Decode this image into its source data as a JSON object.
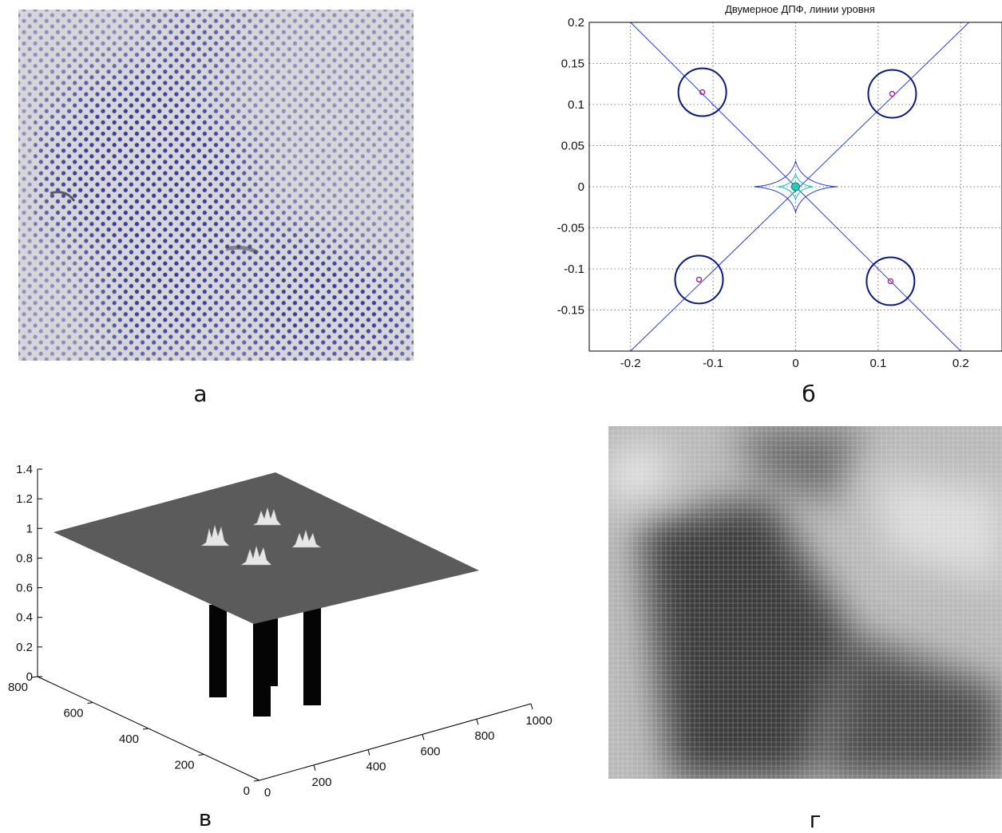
{
  "figure": {
    "captions": {
      "a": "а",
      "b": "б",
      "v": "в",
      "g": "г"
    },
    "panel_a": {
      "description": "halftone dotted scanned image (blue dots on gray)"
    },
    "panel_g": {
      "description": "filtered grayscale image"
    }
  },
  "chart_data": [
    {
      "type": "scatter",
      "title": "Двумерное ДПФ, линии уровня",
      "xlabel": "",
      "ylabel": "",
      "xlim": [
        -0.25,
        0.25
      ],
      "ylim": [
        -0.2,
        0.2
      ],
      "grid": true,
      "xticks": [
        "-0.2",
        "-0.1",
        "0",
        "0.1",
        "0.2"
      ],
      "yticks": [
        "0.2",
        "0.15",
        "0.1",
        "0.05",
        "0",
        "-0.05",
        "-0.1",
        "-0.15"
      ],
      "peaks": [
        {
          "x": -0.113,
          "y": 0.115
        },
        {
          "x": 0.117,
          "y": 0.113
        },
        {
          "x": -0.117,
          "y": -0.113
        },
        {
          "x": 0.115,
          "y": -0.115
        },
        {
          "x": 0.0,
          "y": 0.0
        }
      ],
      "contour_radius": 0.029,
      "lines": [
        {
          "from": [
            -0.2,
            0.2
          ],
          "to": [
            0.2,
            -0.2
          ]
        },
        {
          "from": [
            -0.2,
            -0.2
          ],
          "to": [
            0.21,
            0.2
          ]
        }
      ],
      "colors": {
        "line": "#2a3fd6",
        "circle": "#0a1a7a",
        "center": "#28c7d0",
        "peak": "#b0208a"
      }
    },
    {
      "type": "surface",
      "x_ticks": [
        "200",
        "400",
        "600",
        "800",
        "1000"
      ],
      "y_ticks": [
        "0",
        "200",
        "400",
        "600",
        "800"
      ],
      "z_ticks": [
        "0",
        "0.2",
        "0.4",
        "0.6",
        "0.8",
        "1",
        "1.2",
        "1.4"
      ],
      "x0_label": "0",
      "description": "notch filter surface: plane at 1 with four narrow notches to 0"
    }
  ]
}
